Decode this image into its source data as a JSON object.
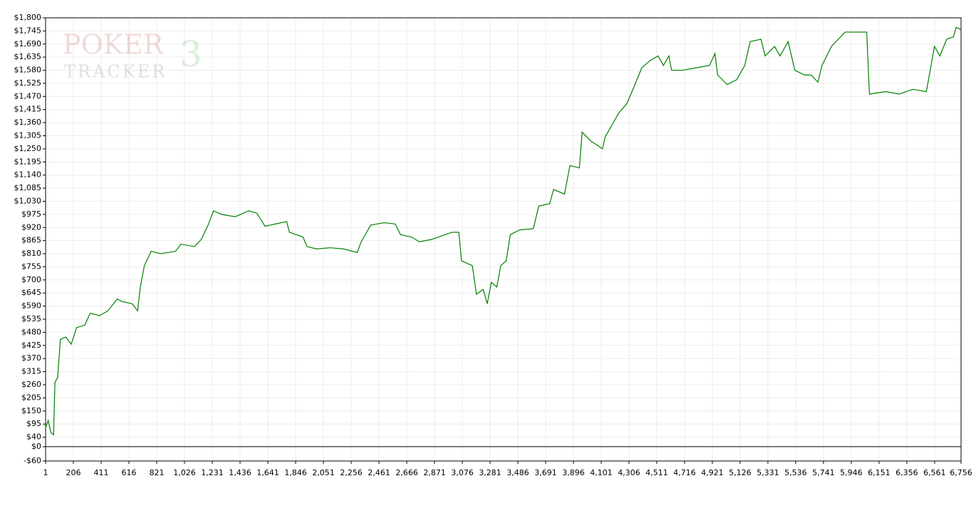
{
  "chart_data": {
    "type": "line",
    "watermark": {
      "line1": "POKER",
      "line2": "TRACKER",
      "badge": "3"
    },
    "x": [
      1,
      20,
      40,
      60,
      70,
      90,
      110,
      150,
      190,
      230,
      290,
      330,
      400,
      460,
      530,
      560,
      640,
      680,
      700,
      730,
      780,
      850,
      960,
      1000,
      1100,
      1150,
      1200,
      1240,
      1300,
      1400,
      1500,
      1560,
      1620,
      1700,
      1780,
      1800,
      1900,
      1930,
      2000,
      2100,
      2200,
      2300,
      2330,
      2400,
      2500,
      2580,
      2620,
      2700,
      2760,
      2850,
      2900,
      3000,
      3050,
      3070,
      3150,
      3180,
      3230,
      3260,
      3290,
      3330,
      3360,
      3400,
      3430,
      3500,
      3600,
      3640,
      3720,
      3750,
      3830,
      3870,
      3940,
      3960,
      4030,
      4060,
      4110,
      4130,
      4170,
      4230,
      4290,
      4350,
      4400,
      4460,
      4520,
      4560,
      4600,
      4620,
      4700,
      4800,
      4900,
      4940,
      4960,
      5030,
      5100,
      5160,
      5200,
      5280,
      5310,
      5380,
      5420,
      5480,
      5530,
      5600,
      5650,
      5700,
      5730,
      5800,
      5900,
      6060,
      6080,
      6200,
      6300,
      6400,
      6500,
      6560,
      6600,
      6650,
      6700,
      6720,
      6756
    ],
    "values": [
      80,
      110,
      60,
      50,
      270,
      290,
      450,
      460,
      430,
      500,
      510,
      560,
      550,
      570,
      620,
      610,
      600,
      570,
      670,
      760,
      820,
      810,
      820,
      850,
      840,
      870,
      930,
      990,
      975,
      965,
      990,
      980,
      925,
      935,
      945,
      900,
      880,
      840,
      830,
      835,
      830,
      815,
      860,
      930,
      940,
      935,
      890,
      880,
      860,
      870,
      880,
      900,
      900,
      780,
      760,
      640,
      660,
      600,
      690,
      670,
      760,
      780,
      890,
      910,
      915,
      1010,
      1020,
      1080,
      1060,
      1180,
      1170,
      1320,
      1280,
      1270,
      1250,
      1300,
      1340,
      1400,
      1440,
      1520,
      1590,
      1620,
      1640,
      1600,
      1640,
      1580,
      1580,
      1590,
      1600,
      1650,
      1560,
      1520,
      1540,
      1600,
      1700,
      1710,
      1640,
      1680,
      1640,
      1700,
      1580,
      1560,
      1560,
      1530,
      1600,
      1680,
      1740,
      1740,
      1480,
      1490,
      1480,
      1500,
      1490,
      1680,
      1640,
      1710,
      1720,
      1760,
      1750
    ],
    "color": "#008000",
    "xlim": [
      1,
      6756
    ],
    "xticks": [
      1,
      206,
      411,
      616,
      821,
      {
        "value": 1026,
        "label": "1,026"
      },
      {
        "value": 1231,
        "label": "1,231"
      },
      {
        "value": 1436,
        "label": "1,436"
      },
      {
        "value": 1641,
        "label": "1,641"
      },
      {
        "value": 1846,
        "label": "1,846"
      },
      {
        "value": 2051,
        "label": "2,051"
      },
      {
        "value": 2256,
        "label": "2,256"
      },
      {
        "value": 2461,
        "label": "2,461"
      },
      {
        "value": 2666,
        "label": "2,666"
      },
      {
        "value": 2871,
        "label": "2,871"
      },
      {
        "value": 3076,
        "label": "3,076"
      },
      {
        "value": 3281,
        "label": "3,281"
      },
      {
        "value": 3486,
        "label": "3,486"
      },
      {
        "value": 3691,
        "label": "3,691"
      },
      {
        "value": 3896,
        "label": "3,896"
      },
      {
        "value": 4101,
        "label": "4,101"
      },
      {
        "value": 4306,
        "label": "4,306"
      },
      {
        "value": 4511,
        "label": "4,511"
      },
      {
        "value": 4716,
        "label": "4,716"
      },
      {
        "value": 4921,
        "label": "4,921"
      },
      {
        "value": 5126,
        "label": "5,126"
      },
      {
        "value": 5331,
        "label": "5,331"
      },
      {
        "value": 5536,
        "label": "5,536"
      },
      {
        "value": 5741,
        "label": "5,741"
      },
      {
        "value": 5946,
        "label": "5,946"
      },
      {
        "value": 6151,
        "label": "6,151"
      },
      {
        "value": 6356,
        "label": "6,356"
      },
      {
        "value": 6561,
        "label": "6,561"
      },
      {
        "value": 6756,
        "label": "6,756"
      }
    ],
    "ylim": [
      -60,
      1800
    ],
    "yticks": [
      {
        "value": -60,
        "label": "-$60"
      },
      {
        "value": 0,
        "label": "$0"
      },
      {
        "value": 40,
        "label": "$40"
      },
      {
        "value": 95,
        "label": "$95"
      },
      {
        "value": 150,
        "label": "$150"
      },
      {
        "value": 205,
        "label": "$205"
      },
      {
        "value": 260,
        "label": "$260"
      },
      {
        "value": 315,
        "label": "$315"
      },
      {
        "value": 370,
        "label": "$370"
      },
      {
        "value": 425,
        "label": "$425"
      },
      {
        "value": 480,
        "label": "$480"
      },
      {
        "value": 535,
        "label": "$535"
      },
      {
        "value": 590,
        "label": "$590"
      },
      {
        "value": 645,
        "label": "$645"
      },
      {
        "value": 700,
        "label": "$700"
      },
      {
        "value": 755,
        "label": "$755"
      },
      {
        "value": 810,
        "label": "$810"
      },
      {
        "value": 865,
        "label": "$865"
      },
      {
        "value": 920,
        "label": "$920"
      },
      {
        "value": 975,
        "label": "$975"
      },
      {
        "value": 1030,
        "label": "$1,030"
      },
      {
        "value": 1085,
        "label": "$1,085"
      },
      {
        "value": 1140,
        "label": "$1,140"
      },
      {
        "value": 1195,
        "label": "$1,195"
      },
      {
        "value": 1250,
        "label": "$1,250"
      },
      {
        "value": 1305,
        "label": "$1,305"
      },
      {
        "value": 1360,
        "label": "$1,360"
      },
      {
        "value": 1415,
        "label": "$1,415"
      },
      {
        "value": 1470,
        "label": "$1,470"
      },
      {
        "value": 1525,
        "label": "$1,525"
      },
      {
        "value": 1580,
        "label": "$1,580"
      },
      {
        "value": 1635,
        "label": "$1,635"
      },
      {
        "value": 1690,
        "label": "$1,690"
      },
      {
        "value": 1745,
        "label": "$1,745"
      },
      {
        "value": 1800,
        "label": "$1,800"
      }
    ],
    "grid": true
  }
}
